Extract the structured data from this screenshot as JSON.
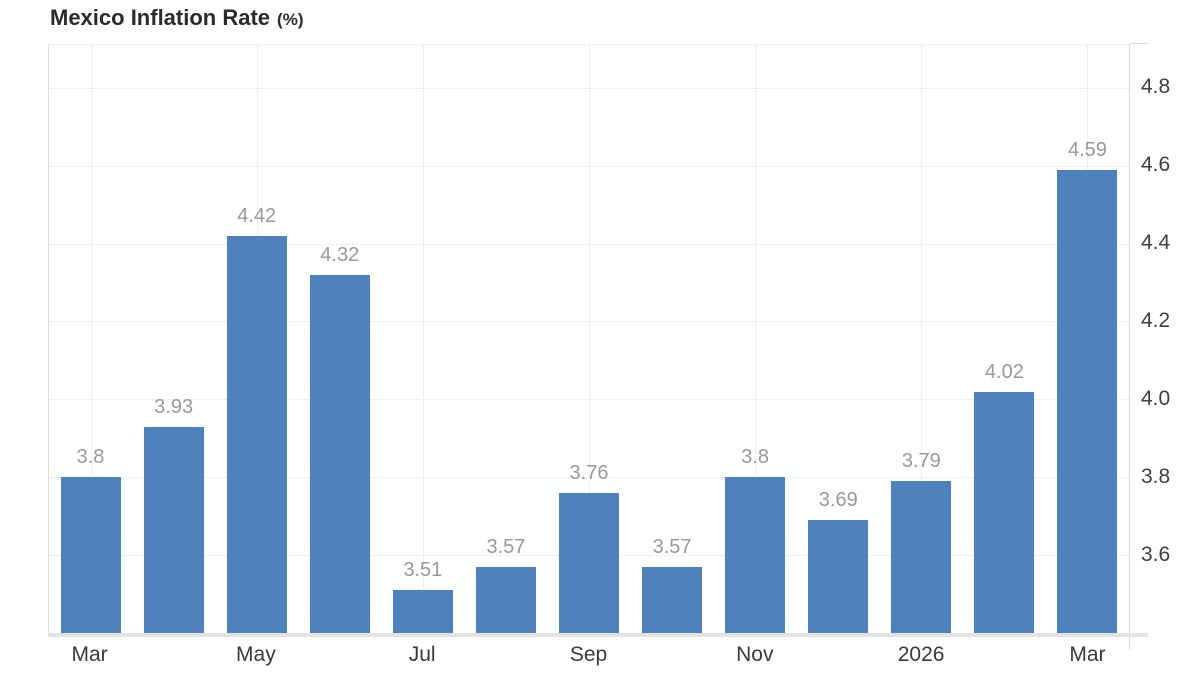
{
  "title": {
    "main": "Mexico Inflation Rate",
    "unit": "(%)"
  },
  "colors": {
    "bar": "#4f81bd",
    "value_label": "#999999",
    "axis_label": "#3f3f3f",
    "title": "#2b2b2b",
    "gridline": "#e2e2e2",
    "axis_line": "#d7d7d7"
  },
  "chart_data": {
    "type": "bar",
    "title": "Mexico Inflation Rate (%)",
    "xlabel": "",
    "ylabel": "",
    "values": [
      3.8,
      3.93,
      4.42,
      4.32,
      3.51,
      3.57,
      3.76,
      3.57,
      3.8,
      3.69,
      3.79,
      4.02,
      4.59
    ],
    "bar_labels": [
      "3.8",
      "3.93",
      "4.42",
      "4.32",
      "3.51",
      "3.57",
      "3.76",
      "3.57",
      "3.8",
      "3.69",
      "3.79",
      "4.02",
      "4.59"
    ],
    "x_ticks": [
      {
        "index": 0,
        "label": "Mar"
      },
      {
        "index": 2,
        "label": "May"
      },
      {
        "index": 4,
        "label": "Jul"
      },
      {
        "index": 6,
        "label": "Sep"
      },
      {
        "index": 8,
        "label": "Nov"
      },
      {
        "index": 10,
        "label": "2026"
      },
      {
        "index": 12,
        "label": "Mar"
      }
    ],
    "y_ticks": [
      {
        "value": 4.8,
        "label": "4.8"
      },
      {
        "value": 4.6,
        "label": "4.6"
      },
      {
        "value": 4.4,
        "label": "4.4"
      },
      {
        "value": 4.2,
        "label": "4.2"
      },
      {
        "value": 4.0,
        "label": "4.0"
      },
      {
        "value": 3.8,
        "label": "3.8"
      },
      {
        "value": 3.6,
        "label": "3.6"
      }
    ],
    "ylim": [
      3.4,
      4.91
    ],
    "grid": "dotted",
    "legend": "none",
    "y_axis_position": "right"
  }
}
